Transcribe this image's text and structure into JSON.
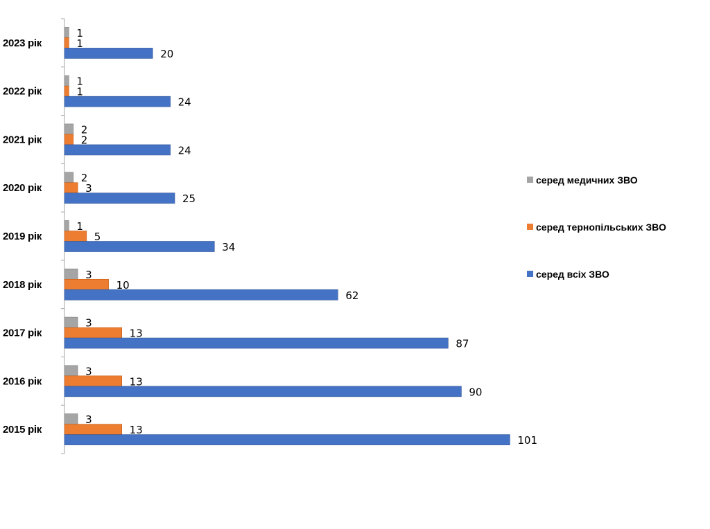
{
  "chart_data": {
    "type": "bar",
    "orientation": "horizontal",
    "title": "",
    "xlabel": "",
    "ylabel": "",
    "categories": [
      "2015 рік",
      "2016 рік",
      "2017 рік",
      "2018 рік",
      "2019 рік",
      "2020 рік",
      "2021 рік",
      "2022 рік",
      "2023 рік"
    ],
    "series": [
      {
        "name": "серед медичних ЗВО",
        "color": "#a5a5a5",
        "values": [
          3,
          3,
          3,
          3,
          1,
          2,
          2,
          1,
          1
        ]
      },
      {
        "name": "серед тернопільських ЗВО",
        "color": "#ed7d31",
        "values": [
          13,
          13,
          13,
          10,
          5,
          3,
          2,
          1,
          1
        ]
      },
      {
        "name": "серед всіх ЗВО",
        "color": "#4472c4",
        "values": [
          101,
          90,
          87,
          62,
          34,
          25,
          24,
          24,
          20
        ]
      }
    ],
    "xlim": [
      0,
      113
    ],
    "grid": false,
    "data_labels": true,
    "legend_position": "right"
  }
}
